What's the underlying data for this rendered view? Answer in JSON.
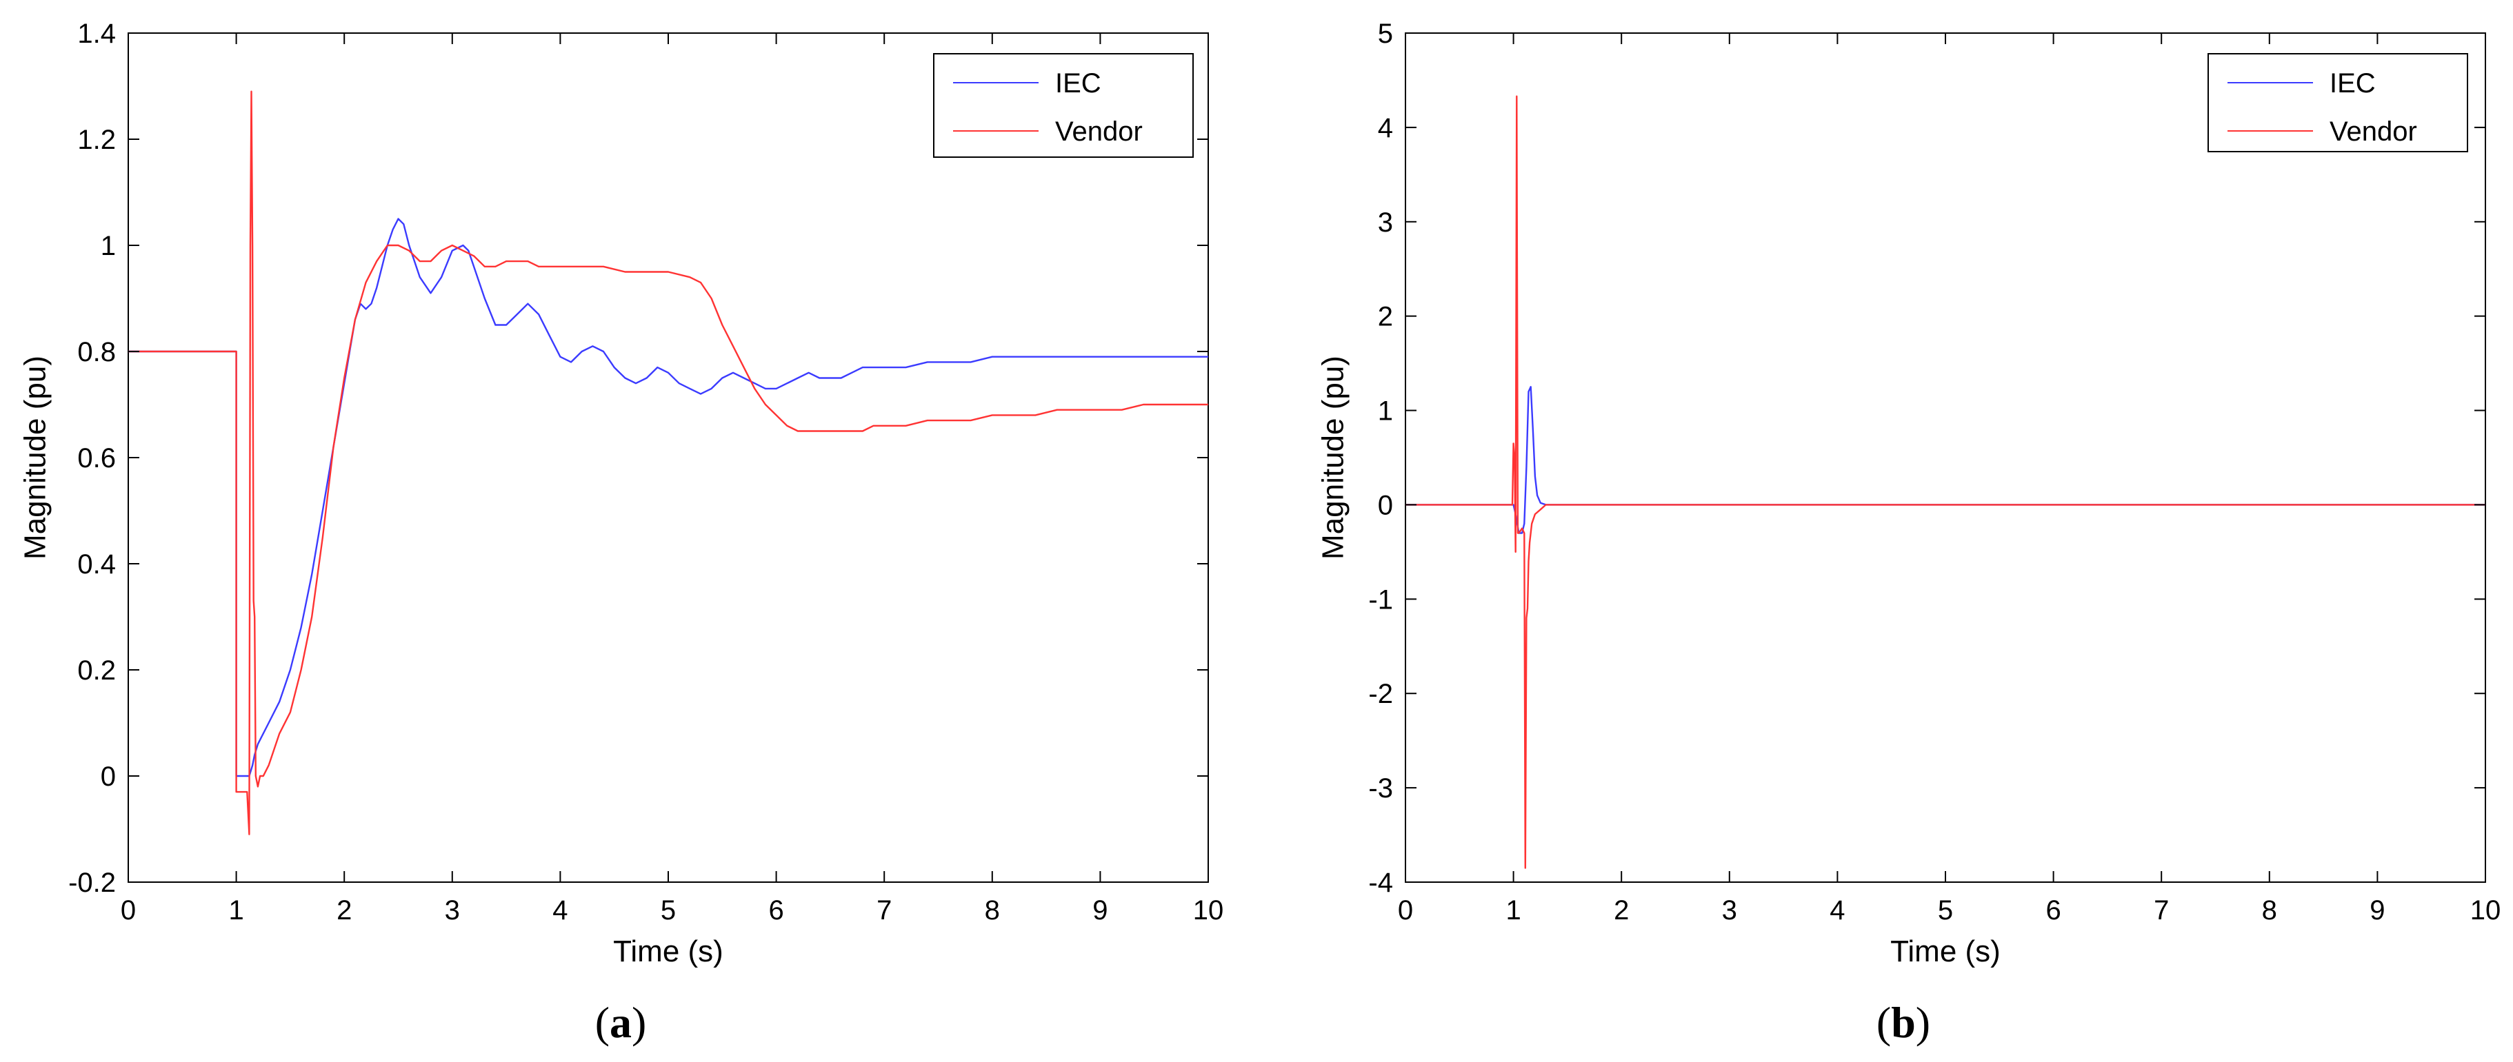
{
  "colors": {
    "iec": "#3b3bff",
    "vendor": "#ff3333",
    "axis": "#000000",
    "background": "#ffffff"
  },
  "chart_data": [
    {
      "type": "line",
      "panel_label": "a",
      "xlabel": "Time (s)",
      "ylabel": "Magnitude (pu)",
      "xlim": [
        0,
        10
      ],
      "ylim": [
        -0.2,
        1.4
      ],
      "xticks": [
        0,
        1,
        2,
        3,
        4,
        5,
        6,
        7,
        8,
        9,
        10
      ],
      "yticks": [
        -0.2,
        0,
        0.2,
        0.4,
        0.6,
        0.8,
        1,
        1.2,
        1.4
      ],
      "yticklabels": [
        "-0.2",
        "0",
        "0.2",
        "0.4",
        "0.6",
        "0.8",
        "1",
        "1.2",
        "1.4"
      ],
      "grid": false,
      "legend_position": "top-right",
      "series": [
        {
          "name": "IEC",
          "color": "#3b3bff",
          "x": [
            0,
            0.99,
            1.0,
            1.0,
            1.05,
            1.1,
            1.12,
            1.15,
            1.17,
            1.2,
            1.3,
            1.4,
            1.5,
            1.6,
            1.7,
            1.8,
            1.9,
            2.0,
            2.05,
            2.1,
            2.15,
            2.2,
            2.25,
            2.3,
            2.35,
            2.4,
            2.45,
            2.5,
            2.55,
            2.6,
            2.7,
            2.8,
            2.9,
            3.0,
            3.1,
            3.15,
            3.2,
            3.3,
            3.4,
            3.5,
            3.6,
            3.7,
            3.8,
            3.9,
            4.0,
            4.1,
            4.2,
            4.3,
            4.4,
            4.5,
            4.6,
            4.7,
            4.8,
            4.9,
            5.0,
            5.1,
            5.2,
            5.3,
            5.4,
            5.5,
            5.6,
            5.7,
            5.8,
            5.9,
            6.0,
            6.1,
            6.2,
            6.3,
            6.4,
            6.5,
            6.6,
            6.7,
            6.8,
            6.9,
            7.0,
            7.2,
            7.4,
            7.6,
            7.8,
            8.0,
            8.2,
            8.4,
            8.6,
            8.8,
            9.0,
            9.2,
            9.4,
            9.6,
            9.8,
            10.0
          ],
          "y": [
            0.8,
            0.8,
            0.8,
            0.0,
            0.0,
            0.0,
            0.0,
            0.02,
            0.04,
            0.06,
            0.1,
            0.14,
            0.2,
            0.28,
            0.38,
            0.5,
            0.62,
            0.74,
            0.8,
            0.86,
            0.89,
            0.88,
            0.89,
            0.92,
            0.96,
            1.0,
            1.03,
            1.05,
            1.04,
            1.0,
            0.94,
            0.91,
            0.94,
            0.99,
            1.0,
            0.99,
            0.96,
            0.9,
            0.85,
            0.85,
            0.87,
            0.89,
            0.87,
            0.83,
            0.79,
            0.78,
            0.8,
            0.81,
            0.8,
            0.77,
            0.75,
            0.74,
            0.75,
            0.77,
            0.76,
            0.74,
            0.73,
            0.72,
            0.73,
            0.75,
            0.76,
            0.75,
            0.74,
            0.73,
            0.73,
            0.74,
            0.75,
            0.76,
            0.75,
            0.75,
            0.75,
            0.76,
            0.77,
            0.77,
            0.77,
            0.77,
            0.78,
            0.78,
            0.78,
            0.79,
            0.79,
            0.79,
            0.79,
            0.79,
            0.79,
            0.79,
            0.79,
            0.79,
            0.79,
            0.79
          ]
        },
        {
          "name": "Vendor",
          "color": "#ff3333",
          "x": [
            0,
            0.99,
            1.0,
            1.0,
            1.05,
            1.1,
            1.12,
            1.13,
            1.14,
            1.15,
            1.16,
            1.17,
            1.18,
            1.19,
            1.2,
            1.21,
            1.22,
            1.25,
            1.3,
            1.35,
            1.4,
            1.5,
            1.6,
            1.7,
            1.8,
            1.9,
            2.0,
            2.1,
            2.2,
            2.3,
            2.4,
            2.5,
            2.6,
            2.7,
            2.8,
            2.9,
            3.0,
            3.1,
            3.2,
            3.3,
            3.4,
            3.5,
            3.6,
            3.7,
            3.8,
            3.9,
            4.0,
            4.2,
            4.4,
            4.6,
            4.8,
            5.0,
            5.2,
            5.3,
            5.4,
            5.5,
            5.6,
            5.7,
            5.8,
            5.9,
            6.0,
            6.1,
            6.2,
            6.3,
            6.4,
            6.5,
            6.6,
            6.7,
            6.8,
            6.9,
            7.0,
            7.2,
            7.4,
            7.6,
            7.8,
            8.0,
            8.2,
            8.4,
            8.6,
            8.8,
            9.0,
            9.2,
            9.4,
            9.6,
            9.8,
            10.0
          ],
          "y": [
            0.8,
            0.8,
            0.8,
            -0.03,
            -0.03,
            -0.03,
            -0.11,
            1.0,
            1.29,
            1.0,
            0.33,
            0.3,
            0.0,
            -0.01,
            -0.02,
            -0.01,
            0.0,
            0.0,
            0.02,
            0.05,
            0.08,
            0.12,
            0.2,
            0.3,
            0.45,
            0.62,
            0.75,
            0.86,
            0.93,
            0.97,
            1.0,
            1.0,
            0.99,
            0.97,
            0.97,
            0.99,
            1.0,
            0.99,
            0.98,
            0.96,
            0.96,
            0.97,
            0.97,
            0.97,
            0.96,
            0.96,
            0.96,
            0.96,
            0.96,
            0.95,
            0.95,
            0.95,
            0.94,
            0.93,
            0.9,
            0.85,
            0.81,
            0.77,
            0.73,
            0.7,
            0.68,
            0.66,
            0.65,
            0.65,
            0.65,
            0.65,
            0.65,
            0.65,
            0.65,
            0.66,
            0.66,
            0.66,
            0.67,
            0.67,
            0.67,
            0.68,
            0.68,
            0.68,
            0.69,
            0.69,
            0.69,
            0.69,
            0.7,
            0.7,
            0.7,
            0.7
          ]
        }
      ]
    },
    {
      "type": "line",
      "panel_label": "b",
      "xlabel": "Time (s)",
      "ylabel": "Magnitude (pu)",
      "xlim": [
        0,
        10
      ],
      "ylim": [
        -4,
        5
      ],
      "xticks": [
        0,
        1,
        2,
        3,
        4,
        5,
        6,
        7,
        8,
        9,
        10
      ],
      "yticks": [
        -4,
        -3,
        -2,
        -1,
        0,
        1,
        2,
        3,
        4,
        5
      ],
      "yticklabels": [
        "-4",
        "-3",
        "-2",
        "-1",
        "0",
        "1",
        "2",
        "3",
        "4",
        "5"
      ],
      "grid": false,
      "legend_position": "top-right",
      "series": [
        {
          "name": "IEC",
          "color": "#3b3bff",
          "x": [
            0,
            1.0,
            1.02,
            1.05,
            1.08,
            1.1,
            1.12,
            1.14,
            1.16,
            1.18,
            1.2,
            1.22,
            1.25,
            1.3,
            1.4,
            10.0
          ],
          "y": [
            0,
            0,
            -0.1,
            -0.3,
            -0.3,
            -0.2,
            0.4,
            1.2,
            1.25,
            0.8,
            0.3,
            0.1,
            0.02,
            0,
            0,
            0
          ]
        },
        {
          "name": "Vendor",
          "color": "#ff3333",
          "x": [
            0,
            0.99,
            1.0,
            1.01,
            1.02,
            1.03,
            1.04,
            1.05,
            1.08,
            1.1,
            1.11,
            1.12,
            1.13,
            1.14,
            1.15,
            1.17,
            1.2,
            1.25,
            1.3,
            1.4,
            10.0
          ],
          "y": [
            0,
            0,
            0.65,
            0.5,
            -0.5,
            4.33,
            -0.3,
            -0.3,
            -0.25,
            -0.3,
            -3.85,
            -1.2,
            -1.1,
            -0.6,
            -0.4,
            -0.2,
            -0.1,
            -0.05,
            0,
            0,
            0
          ]
        }
      ]
    }
  ]
}
